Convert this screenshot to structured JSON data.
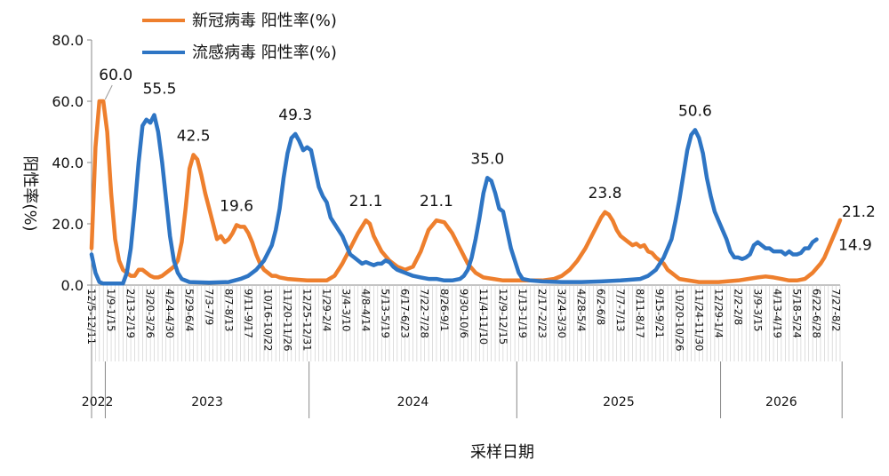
{
  "chart_data": {
    "type": "line",
    "ylabel": "阳性率(%)",
    "xlabel": "采样日期",
    "ylim": [
      0,
      80
    ],
    "yticks": [
      "0.0",
      "20.0",
      "40.0",
      "60.0",
      "80.0"
    ],
    "legend_position": "top-left",
    "n_points": 192,
    "x_ticks": [
      {
        "i": 0,
        "label": "12/5-12/11"
      },
      {
        "i": 5,
        "label": "1/9-1/15"
      },
      {
        "i": 10,
        "label": "2/13-2/19"
      },
      {
        "i": 15,
        "label": "3/20-3/26"
      },
      {
        "i": 20,
        "label": "4/24-4/30"
      },
      {
        "i": 25,
        "label": "5/29-6/4"
      },
      {
        "i": 30,
        "label": "7/3-7/9"
      },
      {
        "i": 35,
        "label": "8/7-8/13"
      },
      {
        "i": 40,
        "label": "9/11-9/17"
      },
      {
        "i": 45,
        "label": "10/16-10/22"
      },
      {
        "i": 50,
        "label": "11/20-11/26"
      },
      {
        "i": 55,
        "label": "12/25-12/31"
      },
      {
        "i": 60,
        "label": "1/29-2/4"
      },
      {
        "i": 65,
        "label": "3/4-3/10"
      },
      {
        "i": 70,
        "label": "4/8-4/14"
      },
      {
        "i": 75,
        "label": "5/13-5/19"
      },
      {
        "i": 80,
        "label": "6/17-6/23"
      },
      {
        "i": 85,
        "label": "7/22-7/28"
      },
      {
        "i": 90,
        "label": "8/26-9/1"
      },
      {
        "i": 95,
        "label": "9/30-10/6"
      },
      {
        "i": 100,
        "label": "11/4-11/10"
      },
      {
        "i": 105,
        "label": "12/9-12/15"
      },
      {
        "i": 110,
        "label": "1/13-1/19"
      },
      {
        "i": 115,
        "label": "2/17-2/23"
      },
      {
        "i": 120,
        "label": "3/24-3/30"
      },
      {
        "i": 125,
        "label": "4/28-5/4"
      },
      {
        "i": 130,
        "label": "6/2-6/8"
      },
      {
        "i": 135,
        "label": "7/7-7/13"
      },
      {
        "i": 140,
        "label": "8/11-8/17"
      },
      {
        "i": 145,
        "label": "9/15-9/21"
      },
      {
        "i": 150,
        "label": "10/20-10/26"
      },
      {
        "i": 155,
        "label": "11/24-11/30"
      },
      {
        "i": 160,
        "label": "12/29-1/4"
      },
      {
        "i": 165,
        "label": "2/2-2/8"
      },
      {
        "i": 170,
        "label": "3/9-3/15"
      },
      {
        "i": 175,
        "label": "4/13-4/19"
      },
      {
        "i": 180,
        "label": "5/18-5/24"
      },
      {
        "i": 185,
        "label": "6/22-6/28"
      },
      {
        "i": 190,
        "label": "7/27-8/2"
      }
    ],
    "years": [
      {
        "label": "2022",
        "start": 0,
        "end": 3
      },
      {
        "label": "2023",
        "start": 4,
        "end": 55
      },
      {
        "label": "2024",
        "start": 56,
        "end": 108
      },
      {
        "label": "2025",
        "start": 109,
        "end": 160
      },
      {
        "label": "2026",
        "start": 161,
        "end": 191
      }
    ],
    "series": [
      {
        "name": "新冠病毒 阳性率(%)",
        "color": "#ee7f2d",
        "points": [
          [
            0,
            12
          ],
          [
            1,
            45
          ],
          [
            2,
            60
          ],
          [
            3,
            60
          ],
          [
            4,
            50
          ],
          [
            5,
            30
          ],
          [
            6,
            15
          ],
          [
            7,
            8
          ],
          [
            8,
            5
          ],
          [
            9,
            4
          ],
          [
            10,
            3
          ],
          [
            11,
            3
          ],
          [
            12,
            5
          ],
          [
            13,
            5
          ],
          [
            14,
            4
          ],
          [
            15,
            3
          ],
          [
            16,
            2.5
          ],
          [
            17,
            2.5
          ],
          [
            18,
            3
          ],
          [
            19,
            4
          ],
          [
            20,
            5
          ],
          [
            21,
            6
          ],
          [
            22,
            8
          ],
          [
            23,
            14
          ],
          [
            24,
            25
          ],
          [
            25,
            38
          ],
          [
            26,
            42.5
          ],
          [
            27,
            41
          ],
          [
            28,
            36
          ],
          [
            29,
            30
          ],
          [
            30,
            25
          ],
          [
            31,
            20
          ],
          [
            32,
            15
          ],
          [
            33,
            16
          ],
          [
            34,
            14
          ],
          [
            35,
            15
          ],
          [
            36,
            17
          ],
          [
            37,
            19.6
          ],
          [
            38,
            19
          ],
          [
            39,
            19
          ],
          [
            40,
            17
          ],
          [
            41,
            14
          ],
          [
            42,
            10
          ],
          [
            43,
            7
          ],
          [
            44,
            5
          ],
          [
            45,
            4
          ],
          [
            46,
            3
          ],
          [
            47,
            3
          ],
          [
            48,
            2.5
          ],
          [
            50,
            2
          ],
          [
            55,
            1.5
          ],
          [
            60,
            1.5
          ],
          [
            62,
            3
          ],
          [
            64,
            7
          ],
          [
            66,
            12
          ],
          [
            68,
            17
          ],
          [
            70,
            21.1
          ],
          [
            71,
            20
          ],
          [
            72,
            16
          ],
          [
            74,
            11
          ],
          [
            76,
            8
          ],
          [
            78,
            6
          ],
          [
            80,
            5
          ],
          [
            82,
            6
          ],
          [
            84,
            11
          ],
          [
            86,
            18
          ],
          [
            88,
            21.1
          ],
          [
            90,
            20.5
          ],
          [
            92,
            17
          ],
          [
            94,
            12
          ],
          [
            96,
            7
          ],
          [
            98,
            4
          ],
          [
            100,
            2.5
          ],
          [
            105,
            1.5
          ],
          [
            110,
            1.5
          ],
          [
            115,
            1.5
          ],
          [
            118,
            2
          ],
          [
            120,
            3
          ],
          [
            122,
            5
          ],
          [
            124,
            8
          ],
          [
            126,
            12
          ],
          [
            128,
            17
          ],
          [
            130,
            22
          ],
          [
            131,
            23.8
          ],
          [
            132,
            23
          ],
          [
            133,
            21
          ],
          [
            134,
            18
          ],
          [
            135,
            16
          ],
          [
            136,
            15
          ],
          [
            137,
            14
          ],
          [
            138,
            13
          ],
          [
            139,
            13.5
          ],
          [
            140,
            12.5
          ],
          [
            141,
            13
          ],
          [
            142,
            11
          ],
          [
            143,
            10.5
          ],
          [
            144,
            9
          ],
          [
            145,
            8
          ],
          [
            146,
            7
          ],
          [
            147,
            5
          ],
          [
            148,
            4
          ],
          [
            149,
            3
          ],
          [
            150,
            2
          ],
          [
            155,
            1
          ],
          [
            160,
            1
          ],
          [
            165,
            1.5
          ],
          [
            170,
            2.5
          ],
          [
            172,
            2.8
          ],
          [
            174,
            2.5
          ],
          [
            176,
            2
          ],
          [
            178,
            1.5
          ],
          [
            180,
            1.5
          ],
          [
            182,
            2
          ],
          [
            184,
            4
          ],
          [
            186,
            7
          ],
          [
            187,
            9
          ],
          [
            188,
            12
          ],
          [
            189,
            15
          ],
          [
            190,
            18
          ],
          [
            191,
            21.2
          ]
        ]
      },
      {
        "name": "流感病毒 阳性率(%)",
        "color": "#2e75c4",
        "points": [
          [
            0,
            10
          ],
          [
            1,
            4
          ],
          [
            2,
            1
          ],
          [
            3,
            0.5
          ],
          [
            5,
            0.5
          ],
          [
            7,
            0.5
          ],
          [
            8,
            0.5
          ],
          [
            9,
            4
          ],
          [
            10,
            12
          ],
          [
            11,
            25
          ],
          [
            12,
            40
          ],
          [
            13,
            52
          ],
          [
            14,
            54
          ],
          [
            15,
            53
          ],
          [
            16,
            55.5
          ],
          [
            17,
            50
          ],
          [
            18,
            40
          ],
          [
            19,
            28
          ],
          [
            20,
            16
          ],
          [
            21,
            8
          ],
          [
            22,
            4
          ],
          [
            23,
            2
          ],
          [
            25,
            1
          ],
          [
            30,
            0.8
          ],
          [
            35,
            1
          ],
          [
            38,
            2
          ],
          [
            40,
            3
          ],
          [
            42,
            5
          ],
          [
            44,
            8
          ],
          [
            46,
            13
          ],
          [
            47,
            18
          ],
          [
            48,
            25
          ],
          [
            49,
            35
          ],
          [
            50,
            43
          ],
          [
            51,
            48
          ],
          [
            52,
            49.3
          ],
          [
            53,
            47
          ],
          [
            54,
            44
          ],
          [
            55,
            45
          ],
          [
            56,
            44
          ],
          [
            57,
            38
          ],
          [
            58,
            32
          ],
          [
            59,
            29
          ],
          [
            60,
            27
          ],
          [
            61,
            22
          ],
          [
            62,
            20
          ],
          [
            63,
            18
          ],
          [
            64,
            16
          ],
          [
            65,
            13
          ],
          [
            66,
            10
          ],
          [
            67,
            9
          ],
          [
            68,
            8
          ],
          [
            69,
            7
          ],
          [
            70,
            7.5
          ],
          [
            71,
            7
          ],
          [
            72,
            6.5
          ],
          [
            73,
            7
          ],
          [
            74,
            7
          ],
          [
            75,
            8
          ],
          [
            76,
            7.5
          ],
          [
            77,
            6
          ],
          [
            78,
            5
          ],
          [
            79,
            4.5
          ],
          [
            80,
            4
          ],
          [
            82,
            3
          ],
          [
            84,
            2.5
          ],
          [
            86,
            2
          ],
          [
            88,
            2
          ],
          [
            90,
            1.5
          ],
          [
            92,
            1.5
          ],
          [
            94,
            2
          ],
          [
            95,
            3
          ],
          [
            96,
            5
          ],
          [
            97,
            9
          ],
          [
            98,
            15
          ],
          [
            99,
            22
          ],
          [
            100,
            30
          ],
          [
            101,
            35
          ],
          [
            102,
            34
          ],
          [
            103,
            30
          ],
          [
            104,
            25
          ],
          [
            105,
            24
          ],
          [
            106,
            18
          ],
          [
            107,
            12
          ],
          [
            108,
            8
          ],
          [
            109,
            4
          ],
          [
            110,
            2
          ],
          [
            112,
            1.5
          ],
          [
            115,
            1.2
          ],
          [
            120,
            1
          ],
          [
            125,
            1
          ],
          [
            130,
            1.2
          ],
          [
            135,
            1.5
          ],
          [
            140,
            2
          ],
          [
            142,
            3
          ],
          [
            144,
            5
          ],
          [
            146,
            9
          ],
          [
            148,
            15
          ],
          [
            149,
            21
          ],
          [
            150,
            28
          ],
          [
            151,
            36
          ],
          [
            152,
            44
          ],
          [
            153,
            49
          ],
          [
            154,
            50.6
          ],
          [
            155,
            48
          ],
          [
            156,
            43
          ],
          [
            157,
            35
          ],
          [
            158,
            29
          ],
          [
            159,
            24
          ],
          [
            160,
            21
          ],
          [
            161,
            18
          ],
          [
            162,
            15
          ],
          [
            163,
            11
          ],
          [
            164,
            9
          ],
          [
            165,
            9
          ],
          [
            166,
            8.5
          ],
          [
            167,
            9
          ],
          [
            168,
            10
          ],
          [
            169,
            13
          ],
          [
            170,
            14
          ],
          [
            171,
            13
          ],
          [
            172,
            12
          ],
          [
            173,
            12
          ],
          [
            174,
            11
          ],
          [
            175,
            11
          ],
          [
            176,
            11
          ],
          [
            177,
            10
          ],
          [
            178,
            11
          ],
          [
            179,
            10
          ],
          [
            180,
            10
          ],
          [
            181,
            10.5
          ],
          [
            182,
            12
          ],
          [
            183,
            12
          ],
          [
            184,
            14
          ],
          [
            185,
            14.9
          ]
        ]
      }
    ],
    "data_labels": [
      {
        "series": 0,
        "i": 3,
        "text": "60.0"
      },
      {
        "series": 1,
        "i": 16,
        "text": "55.5"
      },
      {
        "series": 0,
        "i": 26,
        "text": "42.5"
      },
      {
        "series": 0,
        "i": 37,
        "text": "19.6"
      },
      {
        "series": 1,
        "i": 52,
        "text": "49.3"
      },
      {
        "series": 0,
        "i": 70,
        "text": "21.1"
      },
      {
        "series": 0,
        "i": 88,
        "text": "21.1"
      },
      {
        "series": 1,
        "i": 101,
        "text": "35.0"
      },
      {
        "series": 0,
        "i": 131,
        "text": "23.8"
      },
      {
        "series": 1,
        "i": 154,
        "text": "50.6"
      },
      {
        "series": 0,
        "i": 191,
        "text": "21.2"
      },
      {
        "series": 1,
        "i": 185,
        "text": "14.9"
      }
    ]
  }
}
